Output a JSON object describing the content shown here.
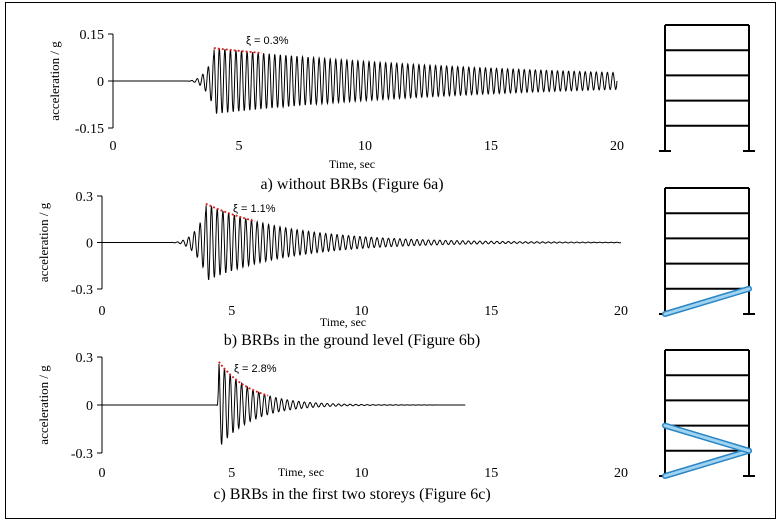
{
  "colors": {
    "signal": "#000000",
    "envelope": "#d62020",
    "brace_fill": "#9fd3f0",
    "brace_stroke": "#2a86c5",
    "frame": "#000000"
  },
  "chart_data": [
    {
      "type": "line",
      "caption": "a) without BRBs (Figure 6a)",
      "xlabel": "Time, sec",
      "ylabel": "acceleration / g",
      "xlim": [
        0,
        20
      ],
      "ylim": [
        -0.15,
        0.15
      ],
      "xticks": [
        0,
        5,
        10,
        15,
        20
      ],
      "yticks": [
        "0.15",
        "0",
        "-0.15"
      ],
      "yticks_values": [
        0.15,
        0,
        -0.15
      ],
      "annotation": "ξ = 0.3%",
      "signal": {
        "onset_time": 2.8,
        "peak_time": 4.0,
        "peak_amplitude": 0.105,
        "end_time": 20,
        "end_amplitude": 0.015,
        "damping_ratio": 0.003,
        "period_sec": 0.22
      },
      "frame": {
        "storeys": 5,
        "braces": []
      }
    },
    {
      "type": "line",
      "caption": "b) BRBs in the ground level (Figure 6b)",
      "xlabel": "Time, sec",
      "ylabel": "acceleration / g",
      "xlim": [
        0,
        20
      ],
      "ylim": [
        -0.3,
        0.3
      ],
      "xticks": [
        0,
        5,
        10,
        15,
        20
      ],
      "yticks": [
        "0.3",
        "0",
        "-0.3"
      ],
      "yticks_values": [
        0.3,
        0,
        -0.3
      ],
      "annotation": "ξ = 1.1%",
      "signal": {
        "onset_time": 2.5,
        "peak_time": 4.0,
        "peak_amplitude": 0.25,
        "end_time": 20,
        "end_amplitude": 0.0,
        "damping_ratio": 0.011,
        "period_sec": 0.22
      },
      "frame": {
        "storeys": 5,
        "braces": [
          1
        ]
      }
    },
    {
      "type": "line",
      "caption": "c) BRBs in the first two storeys (Figure 6c)",
      "xlabel": "Time, sec",
      "ylabel": "acceleration / g",
      "xlim": [
        0,
        20
      ],
      "ylim": [
        -0.3,
        0.3
      ],
      "xticks": [
        0,
        5,
        10,
        15,
        20
      ],
      "yticks": [
        "0.3",
        "0",
        "-0.3"
      ],
      "yticks_values": [
        0.3,
        0,
        -0.3
      ],
      "annotation": "ξ = 2.8%",
      "signal": {
        "onset_time": 4.4,
        "peak_time": 4.5,
        "peak_amplitude": 0.27,
        "end_time": 14,
        "end_amplitude": 0.0,
        "damping_ratio": 0.028,
        "period_sec": 0.22
      },
      "frame": {
        "storeys": 5,
        "braces": [
          1,
          2
        ]
      }
    }
  ]
}
